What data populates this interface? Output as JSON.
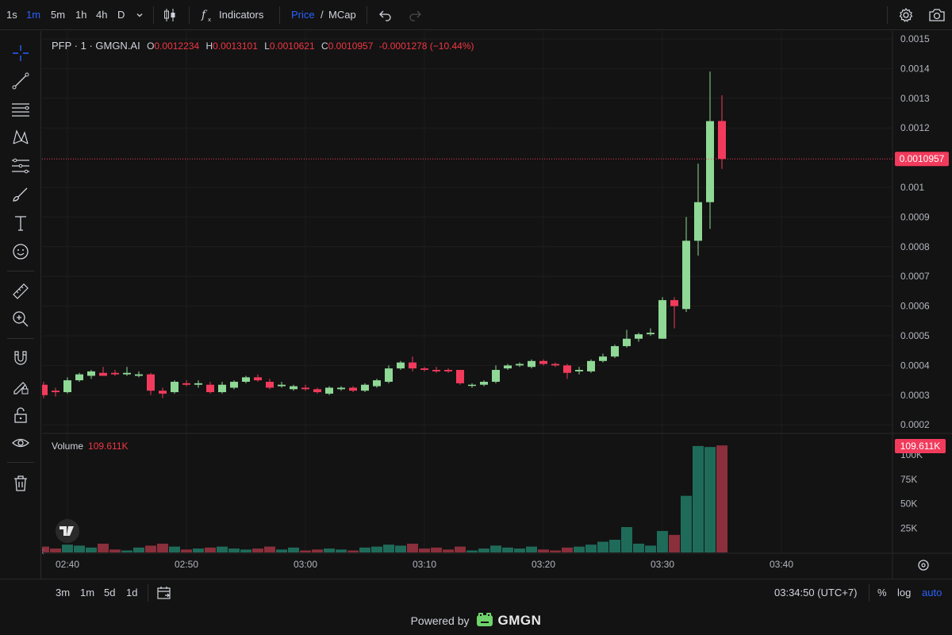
{
  "toolbar": {
    "intervals": [
      "1s",
      "1m",
      "5m",
      "1h",
      "4h",
      "D"
    ],
    "active_interval": "1m",
    "indicators_label": "Indicators",
    "price_label": "Price",
    "slash": "/",
    "mcap_label": "MCap"
  },
  "legend": {
    "symbol": "PFP · 1 · GMGN.AI",
    "open_label": "O",
    "open": "0.0012234",
    "high_label": "H",
    "high": "0.0013101",
    "low_label": "L",
    "low": "0.0010621",
    "close_label": "C",
    "close": "0.0010957",
    "change": "-0.0001278 (−10.44%)"
  },
  "volume_legend": {
    "label": "Volume",
    "value": "109.611K"
  },
  "price_tag": "0.0010957",
  "volume_tag": "109.611K",
  "bottombar": {
    "ranges": [
      "3m",
      "1m",
      "5d",
      "1d"
    ],
    "time": "03:34:50 (UTC+7)",
    "percent": "%",
    "log": "log",
    "auto": "auto"
  },
  "footer": {
    "powered": "Powered by",
    "brand": "GMGN"
  },
  "colors": {
    "up": "#8fd896",
    "down": "#f23b5c",
    "vol_up": "#1f6b5a",
    "vol_down": "#8a2f3b",
    "accent": "#2962ff"
  },
  "chart_data": {
    "type": "candlestick",
    "price_axis": {
      "ticks": [
        0.0015,
        0.0014,
        0.0013,
        0.0012,
        0.001,
        0.0009,
        0.0008,
        0.0007,
        0.0006,
        0.0005,
        0.0004,
        0.0003,
        0.0002
      ],
      "tick_labels": [
        "0.0015",
        "0.0014",
        "0.0013",
        "0.0012",
        "0.001",
        "0.0009",
        "0.0008",
        "0.0007",
        "0.0006",
        "0.0005",
        "0.0004",
        "0.0003",
        "0.0002"
      ]
    },
    "volume_axis": {
      "ticks": [
        100000,
        75000,
        50000,
        25000
      ],
      "tick_labels": [
        "100K",
        "75K",
        "50K",
        "25K"
      ]
    },
    "time_labels": [
      "02:40",
      "02:50",
      "03:00",
      "03:10",
      "03:20",
      "03:30",
      "03:40"
    ],
    "time_ticks_min": [
      0,
      10,
      20,
      30,
      40,
      50,
      60
    ],
    "candles": [
      {
        "o": 0.000335,
        "h": 0.000345,
        "l": 0.00029,
        "c": 0.0003,
        "v": 6000
      },
      {
        "o": 0.000315,
        "h": 0.000325,
        "l": 0.000295,
        "c": 0.00031,
        "v": 4000
      },
      {
        "o": 0.00031,
        "h": 0.00036,
        "l": 0.000305,
        "c": 0.00035,
        "v": 8000
      },
      {
        "o": 0.00035,
        "h": 0.000375,
        "l": 0.000345,
        "c": 0.00037,
        "v": 7000
      },
      {
        "o": 0.000365,
        "h": 0.000385,
        "l": 0.000355,
        "c": 0.00038,
        "v": 5000
      },
      {
        "o": 0.000375,
        "h": 0.000395,
        "l": 0.00037,
        "c": 0.000365,
        "v": 9000
      },
      {
        "o": 0.000375,
        "h": 0.000385,
        "l": 0.000365,
        "c": 0.00037,
        "v": 3000
      },
      {
        "o": 0.00037,
        "h": 0.000395,
        "l": 0.000365,
        "c": 0.000375,
        "v": 2000
      },
      {
        "o": 0.000365,
        "h": 0.00038,
        "l": 0.00036,
        "c": 0.00037,
        "v": 5000
      },
      {
        "o": 0.00037,
        "h": 0.000375,
        "l": 0.0003,
        "c": 0.000315,
        "v": 7000
      },
      {
        "o": 0.000315,
        "h": 0.000325,
        "l": 0.00029,
        "c": 0.000305,
        "v": 9000
      },
      {
        "o": 0.00031,
        "h": 0.00035,
        "l": 0.000305,
        "c": 0.000345,
        "v": 6000
      },
      {
        "o": 0.00034,
        "h": 0.00035,
        "l": 0.00033,
        "c": 0.000335,
        "v": 3000
      },
      {
        "o": 0.000335,
        "h": 0.00035,
        "l": 0.000325,
        "c": 0.00034,
        "v": 4000
      },
      {
        "o": 0.000335,
        "h": 0.000345,
        "l": 0.000305,
        "c": 0.00031,
        "v": 5000
      },
      {
        "o": 0.00031,
        "h": 0.000345,
        "l": 0.000305,
        "c": 0.000335,
        "v": 6000
      },
      {
        "o": 0.000325,
        "h": 0.00035,
        "l": 0.00032,
        "c": 0.000345,
        "v": 4000
      },
      {
        "o": 0.000345,
        "h": 0.000365,
        "l": 0.00034,
        "c": 0.00036,
        "v": 3000
      },
      {
        "o": 0.00036,
        "h": 0.00037,
        "l": 0.000345,
        "c": 0.00035,
        "v": 4000
      },
      {
        "o": 0.000345,
        "h": 0.000355,
        "l": 0.00032,
        "c": 0.000325,
        "v": 6000
      },
      {
        "o": 0.00033,
        "h": 0.000345,
        "l": 0.000325,
        "c": 0.000335,
        "v": 3000
      },
      {
        "o": 0.00032,
        "h": 0.000335,
        "l": 0.000315,
        "c": 0.00033,
        "v": 5000
      },
      {
        "o": 0.000325,
        "h": 0.000335,
        "l": 0.000315,
        "c": 0.00032,
        "v": 2000
      },
      {
        "o": 0.00032,
        "h": 0.000325,
        "l": 0.000305,
        "c": 0.00031,
        "v": 3000
      },
      {
        "o": 0.000305,
        "h": 0.00033,
        "l": 0.0003,
        "c": 0.000325,
        "v": 4000
      },
      {
        "o": 0.00032,
        "h": 0.00033,
        "l": 0.000315,
        "c": 0.000325,
        "v": 3000
      },
      {
        "o": 0.000325,
        "h": 0.00033,
        "l": 0.00031,
        "c": 0.000315,
        "v": 2000
      },
      {
        "o": 0.000315,
        "h": 0.00034,
        "l": 0.00031,
        "c": 0.000335,
        "v": 5000
      },
      {
        "o": 0.00033,
        "h": 0.000355,
        "l": 0.000325,
        "c": 0.00035,
        "v": 6000
      },
      {
        "o": 0.000345,
        "h": 0.0004,
        "l": 0.00034,
        "c": 0.00039,
        "v": 8000
      },
      {
        "o": 0.00039,
        "h": 0.000415,
        "l": 0.000385,
        "c": 0.00041,
        "v": 7000
      },
      {
        "o": 0.00041,
        "h": 0.00043,
        "l": 0.00038,
        "c": 0.00039,
        "v": 9000
      },
      {
        "o": 0.00039,
        "h": 0.000395,
        "l": 0.00038,
        "c": 0.000385,
        "v": 4000
      },
      {
        "o": 0.000385,
        "h": 0.000395,
        "l": 0.000375,
        "c": 0.00038,
        "v": 5000
      },
      {
        "o": 0.000385,
        "h": 0.00039,
        "l": 0.000375,
        "c": 0.00038,
        "v": 3000
      },
      {
        "o": 0.000385,
        "h": 0.000385,
        "l": 0.000335,
        "c": 0.00034,
        "v": 6000
      },
      {
        "o": 0.000335,
        "h": 0.00034,
        "l": 0.000325,
        "c": 0.000335,
        "v": 2000
      },
      {
        "o": 0.000335,
        "h": 0.00035,
        "l": 0.00033,
        "c": 0.000345,
        "v": 4000
      },
      {
        "o": 0.000345,
        "h": 0.0004,
        "l": 0.00034,
        "c": 0.000385,
        "v": 7000
      },
      {
        "o": 0.00039,
        "h": 0.000405,
        "l": 0.000385,
        "c": 0.0004,
        "v": 5000
      },
      {
        "o": 0.0004,
        "h": 0.00041,
        "l": 0.000395,
        "c": 0.000405,
        "v": 4000
      },
      {
        "o": 0.000395,
        "h": 0.00042,
        "l": 0.00039,
        "c": 0.000415,
        "v": 6000
      },
      {
        "o": 0.000415,
        "h": 0.00042,
        "l": 0.0004,
        "c": 0.000405,
        "v": 3000
      },
      {
        "o": 0.000405,
        "h": 0.00041,
        "l": 0.000395,
        "c": 0.0004,
        "v": 2000
      },
      {
        "o": 0.0004,
        "h": 0.000405,
        "l": 0.000355,
        "c": 0.000375,
        "v": 5000
      },
      {
        "o": 0.00038,
        "h": 0.000395,
        "l": 0.00037,
        "c": 0.000385,
        "v": 6000
      },
      {
        "o": 0.00038,
        "h": 0.00042,
        "l": 0.000375,
        "c": 0.000415,
        "v": 8000
      },
      {
        "o": 0.000415,
        "h": 0.00044,
        "l": 0.00041,
        "c": 0.00043,
        "v": 11000
      },
      {
        "o": 0.00043,
        "h": 0.00047,
        "l": 0.000425,
        "c": 0.000465,
        "v": 13000
      },
      {
        "o": 0.000465,
        "h": 0.00052,
        "l": 0.00046,
        "c": 0.00049,
        "v": 26000
      },
      {
        "o": 0.00049,
        "h": 0.00051,
        "l": 0.00048,
        "c": 0.000505,
        "v": 9000
      },
      {
        "o": 0.000505,
        "h": 0.000525,
        "l": 0.0005,
        "c": 0.00051,
        "v": 7000
      },
      {
        "o": 0.00049,
        "h": 0.00063,
        "l": 0.00049,
        "c": 0.00062,
        "v": 22000
      },
      {
        "o": 0.00062,
        "h": 0.00063,
        "l": 0.000525,
        "c": 0.0006,
        "v": 18000
      },
      {
        "o": 0.00059,
        "h": 0.0009,
        "l": 0.00058,
        "c": 0.00082,
        "v": 58000
      },
      {
        "o": 0.00082,
        "h": 0.00108,
        "l": 0.00077,
        "c": 0.00095,
        "v": 109000
      },
      {
        "o": 0.00095,
        "h": 0.00139,
        "l": 0.00086,
        "c": 0.001223,
        "v": 108000
      },
      {
        "o": 0.0012234,
        "h": 0.0013101,
        "l": 0.0010621,
        "c": 0.0010957,
        "v": 109611
      }
    ]
  }
}
